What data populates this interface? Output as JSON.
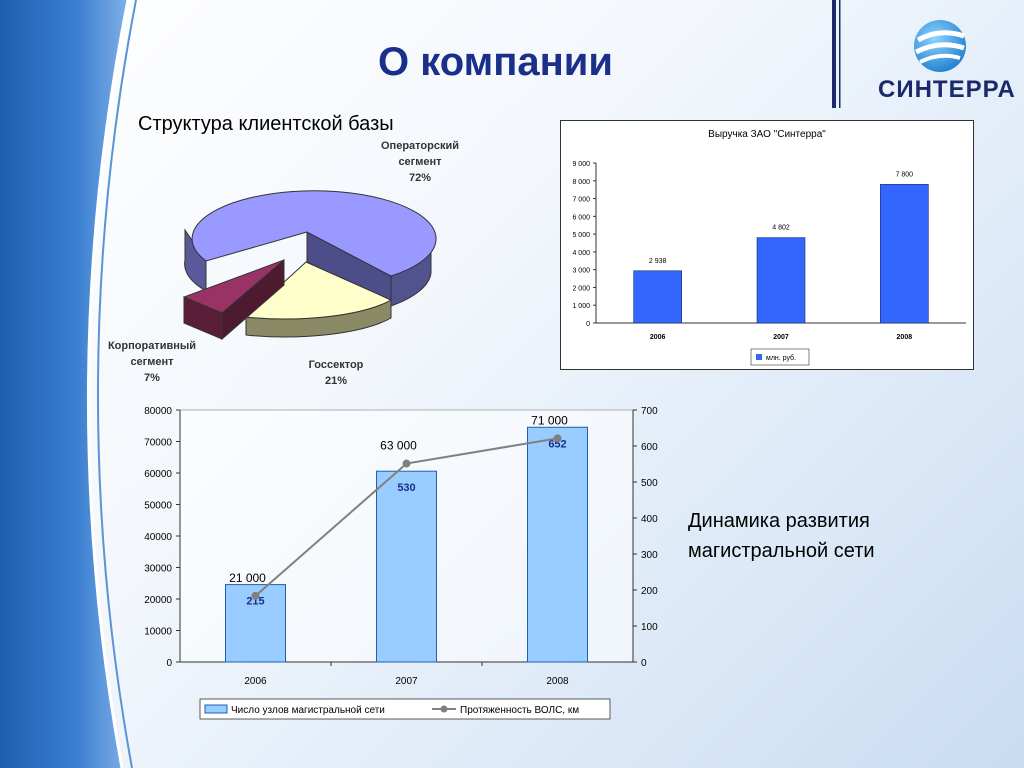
{
  "slide": {
    "title": "О компании",
    "logo_text": "СИНТЕРРА",
    "network_caption": "Динамика развития\nмагистральной сети"
  },
  "chart_data": [
    {
      "type": "pie",
      "title": "Структура клиентской базы",
      "slices": [
        {
          "label": "Операторский\nсегмент\n72%",
          "value": 72,
          "color": "#9999ff"
        },
        {
          "label": "Госсектор\n21%",
          "value": 21,
          "color": "#ffffcc"
        },
        {
          "label": "Корпоративный\nсегмент\n7%",
          "value": 7,
          "color": "#993366"
        }
      ]
    },
    {
      "type": "bar",
      "title": "Выручка ЗАО \"Синтерра\"",
      "categories": [
        "2006",
        "2007",
        "2008"
      ],
      "series": [
        {
          "name": "млн. руб.",
          "values": [
            2938,
            4802,
            7800
          ],
          "color": "#3366ff"
        }
      ],
      "data_labels": [
        "2 938",
        "4 802",
        "7 800"
      ],
      "yticks": [
        "0",
        "1 000",
        "2 000",
        "3 000",
        "4 000",
        "5 000",
        "6 000",
        "7 000",
        "8 000",
        "9 000"
      ],
      "ylim": [
        0,
        9000
      ],
      "legend": "bottom"
    },
    {
      "type": "bar",
      "categories": [
        "2006",
        "2007",
        "2008"
      ],
      "series": [
        {
          "name": "Число узлов магистральной сети",
          "type": "bar",
          "axis": "right",
          "values": [
            215,
            530,
            652
          ],
          "labels": [
            "215",
            "530",
            "652"
          ],
          "color": "#99ccff"
        },
        {
          "name": "Протяженность ВОЛС, км",
          "type": "line",
          "axis": "left",
          "values": [
            21000,
            63000,
            71000
          ],
          "labels": [
            "21 000",
            "63 000",
            "71 000"
          ],
          "color": "#808080"
        }
      ],
      "y_left": {
        "ylim": [
          0,
          80000
        ],
        "ticks": [
          "0",
          "10000",
          "20000",
          "30000",
          "40000",
          "50000",
          "60000",
          "70000",
          "80000"
        ]
      },
      "y_right": {
        "ylim": [
          0,
          700
        ],
        "ticks": [
          "0",
          "100",
          "200",
          "300",
          "400",
          "500",
          "600",
          "700"
        ]
      },
      "legend": "bottom"
    }
  ]
}
